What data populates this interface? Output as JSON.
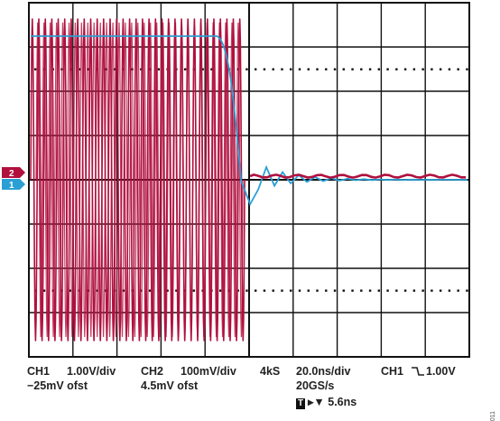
{
  "channels": {
    "ch1": {
      "label": "CH1",
      "scale": "1.00V/div",
      "offset": "−25mV ofst",
      "color": "#2a9fd4",
      "marker": "1"
    },
    "ch2": {
      "label": "CH2",
      "scale": "100mV/div",
      "offset": "4.5mV ofst",
      "color": "#b0103e",
      "marker": "2"
    }
  },
  "acquisition": {
    "record_length": "4kS",
    "timebase": "20.0ns/div",
    "sample_rate": "20GS/s"
  },
  "trigger": {
    "source": "CH1",
    "edge_icon": "falling-edge-icon",
    "level": "1.00V",
    "badge": "T",
    "position_marker": "▸▼",
    "position": "5.6ns"
  },
  "figure_code": "011"
}
